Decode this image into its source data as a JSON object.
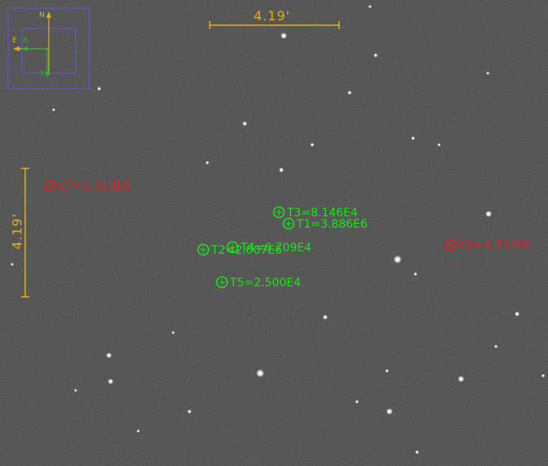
{
  "targets": [
    {
      "id": "T1",
      "label": "T1=3.886E6",
      "color": "#19e619"
    },
    {
      "id": "T2",
      "label": "T2=2.007E6",
      "color": "#19e619"
    },
    {
      "id": "T3",
      "label": "T3=8.146E4",
      "color": "#19e619"
    },
    {
      "id": "T4",
      "label": "T4=6.709E4",
      "color": "#19e619"
    },
    {
      "id": "T5",
      "label": "T5=2.500E4",
      "color": "#19e619"
    }
  ],
  "comparisons": [
    {
      "id": "C6",
      "label": "C6=1.747E6",
      "color": "#e02020"
    },
    {
      "id": "C7",
      "label": "C7=1.010E6",
      "color": "#e02020"
    }
  ],
  "scale": {
    "horizontal_label": "4.19'",
    "vertical_label": "4.19'",
    "color": "#e0b018"
  },
  "compass": {
    "north_label": "N",
    "east_label": "E",
    "x_label": "X",
    "y_label": "Y",
    "box_color": "#5b5bd6",
    "ne_color": "#e0b018",
    "xy_color": "#19c019"
  }
}
